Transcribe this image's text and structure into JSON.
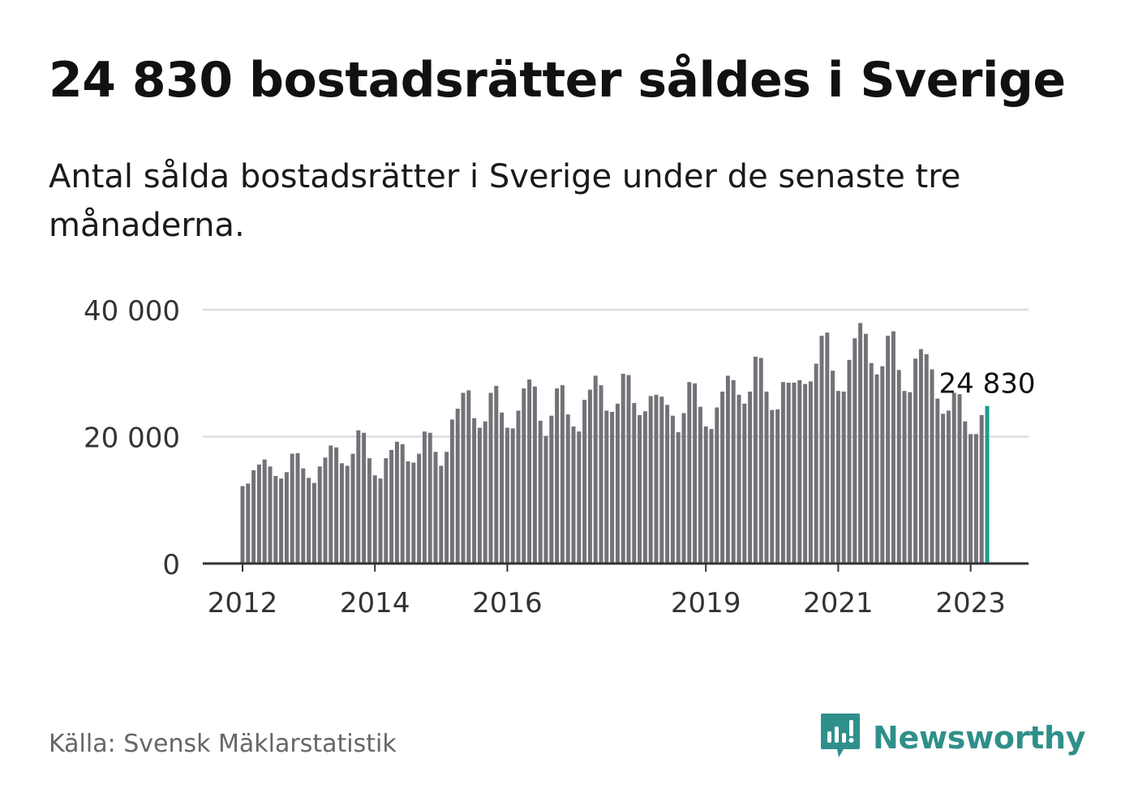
{
  "header": {
    "title": "24 830 bostadsrätter såldes i Sverige",
    "subtitle": "Antal sålda bostadsrätter i Sverige under de senaste tre månaderna."
  },
  "footer": {
    "source": "Källa: Svensk Mäklarstatistik",
    "brand": "Newsworthy",
    "brand_icon": "newsworthy-logo-icon"
  },
  "colors": {
    "bar": "#737278",
    "highlight": "#1a9e8f",
    "gridline": "#dddddd",
    "axis": "#333333",
    "brand": "#2f8f8a"
  },
  "chart_data": {
    "type": "bar",
    "ylim": [
      0,
      40000
    ],
    "yticks": [
      0,
      20000,
      40000
    ],
    "ytick_labels": [
      "0",
      "20 000",
      "40 000"
    ],
    "xtick_labels": [
      "2012",
      "2014",
      "2016",
      "2019",
      "2021",
      "2023"
    ],
    "xtick_years": [
      2012,
      2014,
      2016,
      2019,
      2021,
      2023
    ],
    "start_year": 2012,
    "annotation": "24 830",
    "highlight_index": 135,
    "grid": true,
    "values": [
      12200,
      12600,
      14700,
      15600,
      16400,
      15300,
      13800,
      13400,
      14400,
      17300,
      17400,
      15000,
      13500,
      12700,
      15300,
      16700,
      18600,
      18300,
      15800,
      15400,
      17300,
      21000,
      20600,
      16600,
      13900,
      13400,
      16600,
      17900,
      19200,
      18800,
      16100,
      15900,
      17300,
      20800,
      20600,
      17600,
      15400,
      17600,
      22700,
      24400,
      26900,
      27300,
      22900,
      21400,
      22400,
      26900,
      28000,
      23800,
      21400,
      21300,
      24100,
      27600,
      29000,
      27900,
      22500,
      20100,
      23300,
      27600,
      28100,
      23500,
      21600,
      20800,
      25800,
      27400,
      29600,
      28100,
      24100,
      23900,
      25200,
      29900,
      29700,
      25300,
      23400,
      24000,
      26400,
      26600,
      26300,
      25000,
      23300,
      20700,
      23700,
      28600,
      28400,
      24700,
      21600,
      21200,
      24600,
      27100,
      29600,
      28900,
      26600,
      25200,
      27100,
      32600,
      32400,
      27100,
      24200,
      24300,
      28600,
      28500,
      28500,
      28900,
      28300,
      28700,
      31500,
      35900,
      36400,
      30400,
      27200,
      27100,
      32100,
      35500,
      37900,
      36200,
      31600,
      29800,
      31100,
      35900,
      36600,
      30500,
      27200,
      27000,
      32300,
      33800,
      33000,
      30600,
      26000,
      23600,
      24100,
      26900,
      26700,
      22400,
      20400,
      20400,
      23400,
      24830
    ]
  }
}
